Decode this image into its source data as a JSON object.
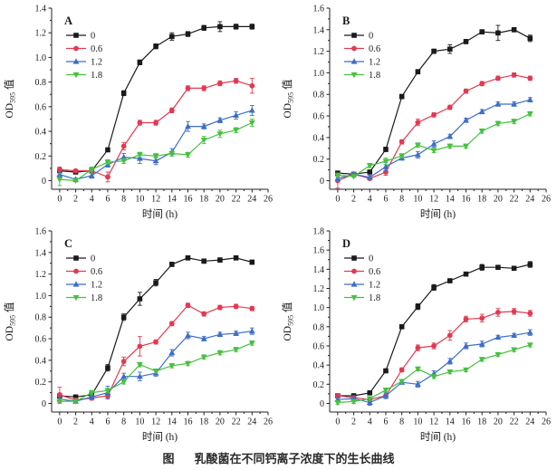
{
  "figure": {
    "caption_label": "图",
    "caption_title": "乳酸菌在不同钙离子浓度下的生长曲线"
  },
  "colors": {
    "axis": "#222222",
    "series_black": "#1a1a1a",
    "series_red": "#e23a52",
    "series_blue": "#3e6ec8",
    "series_green": "#45c13f"
  },
  "chart_data": [
    {
      "type": "line",
      "panel": "A",
      "xlabel": "时间 (h)",
      "ylabel": {
        "pre": "OD",
        "sub": "595",
        "post": " 值"
      },
      "xlim": [
        0,
        26
      ],
      "ylim": [
        0,
        1.4
      ],
      "xtick_step": 2,
      "ytick_step": 0.2,
      "grid": false,
      "legend_position": "upper-left",
      "x": [
        0,
        2,
        4,
        6,
        8,
        10,
        12,
        14,
        16,
        18,
        20,
        22,
        24
      ],
      "series": [
        {
          "name": "0",
          "marker": "square",
          "color": "#1a1a1a",
          "values": [
            0.08,
            0.07,
            0.08,
            0.25,
            0.71,
            0.96,
            1.09,
            1.17,
            1.19,
            1.24,
            1.25,
            1.25,
            1.25
          ],
          "err": [
            0.01,
            0.01,
            0.01,
            0.01,
            0.02,
            0.02,
            0.02,
            0.03,
            0.02,
            0.02,
            0.04,
            0.02,
            0.02
          ]
        },
        {
          "name": "0.6",
          "marker": "circle",
          "color": "#e23a52",
          "values": [
            0.09,
            0.08,
            0.08,
            0.03,
            0.28,
            0.47,
            0.47,
            0.57,
            0.75,
            0.75,
            0.79,
            0.81,
            0.77
          ],
          "err": [
            0.02,
            0.01,
            0.01,
            0.04,
            0.03,
            0.02,
            0.02,
            0.02,
            0.02,
            0.02,
            0.02,
            0.02,
            0.06
          ]
        },
        {
          "name": "1.2",
          "marker": "triangle-up",
          "color": "#3e6ec8",
          "values": [
            0.05,
            0.01,
            0.04,
            0.13,
            0.19,
            0.18,
            0.16,
            0.23,
            0.44,
            0.44,
            0.49,
            0.53,
            0.57
          ],
          "err": [
            0.02,
            0.01,
            0.02,
            0.02,
            0.03,
            0.04,
            0.03,
            0.03,
            0.04,
            0.02,
            0.02,
            0.03,
            0.04
          ]
        },
        {
          "name": "1.8",
          "marker": "triangle-down",
          "color": "#45c13f",
          "values": [
            0.01,
            0.0,
            0.09,
            0.15,
            0.16,
            0.21,
            0.2,
            0.22,
            0.21,
            0.33,
            0.38,
            0.41,
            0.47
          ],
          "err": [
            0.05,
            0.01,
            0.02,
            0.02,
            0.02,
            0.02,
            0.02,
            0.02,
            0.02,
            0.03,
            0.03,
            0.02,
            0.03
          ]
        }
      ]
    },
    {
      "type": "line",
      "panel": "B",
      "xlabel": "时间 (h)",
      "ylabel": {
        "pre": "OD",
        "sub": "595",
        "post": " 值"
      },
      "xlim": [
        0,
        26
      ],
      "ylim": [
        0,
        1.6
      ],
      "xtick_step": 2,
      "ytick_step": 0.2,
      "grid": false,
      "legend_position": "upper-left",
      "x": [
        0,
        2,
        4,
        6,
        8,
        10,
        12,
        14,
        16,
        18,
        20,
        22,
        24
      ],
      "series": [
        {
          "name": "0",
          "marker": "square",
          "color": "#1a1a1a",
          "values": [
            0.07,
            0.06,
            0.08,
            0.29,
            0.78,
            1.01,
            1.2,
            1.22,
            1.29,
            1.38,
            1.37,
            1.4,
            1.32
          ],
          "err": [
            0.01,
            0.01,
            0.01,
            0.02,
            0.02,
            0.02,
            0.02,
            0.04,
            0.02,
            0.02,
            0.07,
            0.02,
            0.03
          ]
        },
        {
          "name": "0.6",
          "marker": "circle",
          "color": "#e23a52",
          "values": [
            0.0,
            0.06,
            0.02,
            0.08,
            0.36,
            0.54,
            0.61,
            0.68,
            0.83,
            0.9,
            0.95,
            0.98,
            0.95
          ],
          "err": [
            0.07,
            0.01,
            0.01,
            0.03,
            0.02,
            0.03,
            0.02,
            0.02,
            0.02,
            0.02,
            0.02,
            0.02,
            0.02
          ]
        },
        {
          "name": "1.2",
          "marker": "triangle-up",
          "color": "#3e6ec8",
          "values": [
            0.02,
            0.06,
            0.03,
            0.13,
            0.21,
            0.24,
            0.34,
            0.41,
            0.56,
            0.64,
            0.71,
            0.71,
            0.75
          ],
          "err": [
            0.02,
            0.02,
            0.02,
            0.04,
            0.02,
            0.03,
            0.03,
            0.02,
            0.02,
            0.02,
            0.02,
            0.02,
            0.02
          ]
        },
        {
          "name": "1.8",
          "marker": "triangle-down",
          "color": "#45c13f",
          "values": [
            0.05,
            0.04,
            0.14,
            0.18,
            0.23,
            0.33,
            0.28,
            0.32,
            0.32,
            0.46,
            0.53,
            0.55,
            0.62
          ],
          "err": [
            0.02,
            0.01,
            0.02,
            0.03,
            0.02,
            0.02,
            0.02,
            0.02,
            0.02,
            0.02,
            0.02,
            0.02,
            0.02
          ]
        }
      ]
    },
    {
      "type": "line",
      "panel": "C",
      "xlabel": "时间 (h)",
      "ylabel": {
        "pre": "OD",
        "sub": "595",
        "post": " 值"
      },
      "xlim": [
        0,
        26
      ],
      "ylim": [
        0,
        1.6
      ],
      "xtick_step": 2,
      "ytick_step": 0.2,
      "grid": false,
      "legend_position": "upper-left",
      "x": [
        0,
        2,
        4,
        6,
        8,
        10,
        12,
        14,
        16,
        18,
        20,
        22,
        24
      ],
      "series": [
        {
          "name": "0",
          "marker": "square",
          "color": "#1a1a1a",
          "values": [
            0.07,
            0.06,
            0.08,
            0.33,
            0.8,
            0.97,
            1.12,
            1.29,
            1.35,
            1.32,
            1.33,
            1.35,
            1.31
          ],
          "err": [
            0.02,
            0.01,
            0.01,
            0.03,
            0.03,
            0.06,
            0.03,
            0.02,
            0.02,
            0.02,
            0.02,
            0.02,
            0.02
          ]
        },
        {
          "name": "0.6",
          "marker": "circle",
          "color": "#e23a52",
          "values": [
            0.08,
            0.03,
            0.05,
            0.07,
            0.39,
            0.53,
            0.57,
            0.74,
            0.91,
            0.83,
            0.89,
            0.9,
            0.88
          ],
          "err": [
            0.07,
            0.02,
            0.02,
            0.02,
            0.04,
            0.09,
            0.02,
            0.02,
            0.02,
            0.02,
            0.02,
            0.02,
            0.02
          ]
        },
        {
          "name": "1.2",
          "marker": "triangle-up",
          "color": "#3e6ec8",
          "values": [
            0.04,
            0.02,
            0.06,
            0.1,
            0.25,
            0.25,
            0.28,
            0.47,
            0.63,
            0.6,
            0.64,
            0.65,
            0.67
          ],
          "err": [
            0.02,
            0.01,
            0.02,
            0.06,
            0.03,
            0.04,
            0.03,
            0.03,
            0.03,
            0.02,
            0.02,
            0.02,
            0.03
          ]
        },
        {
          "name": "1.8",
          "marker": "triangle-down",
          "color": "#45c13f",
          "values": [
            0.02,
            0.02,
            0.1,
            0.12,
            0.2,
            0.36,
            0.3,
            0.35,
            0.37,
            0.43,
            0.47,
            0.5,
            0.56
          ],
          "err": [
            0.02,
            0.01,
            0.02,
            0.02,
            0.02,
            0.02,
            0.02,
            0.02,
            0.02,
            0.02,
            0.02,
            0.02,
            0.02
          ]
        }
      ]
    },
    {
      "type": "line",
      "panel": "D",
      "xlabel": "时间 (h)",
      "ylabel": {
        "pre": "OD",
        "sub": "595",
        "post": " 值"
      },
      "xlim": [
        0,
        26
      ],
      "ylim": [
        0,
        1.8
      ],
      "xtick_step": 2,
      "ytick_step": 0.2,
      "grid": false,
      "legend_position": "upper-left",
      "x": [
        0,
        2,
        4,
        6,
        8,
        10,
        12,
        14,
        16,
        18,
        20,
        22,
        24
      ],
      "series": [
        {
          "name": "0",
          "marker": "square",
          "color": "#1a1a1a",
          "values": [
            0.08,
            0.08,
            0.11,
            0.34,
            0.8,
            1.01,
            1.21,
            1.28,
            1.35,
            1.42,
            1.42,
            1.41,
            1.45
          ],
          "err": [
            0.01,
            0.01,
            0.02,
            0.02,
            0.02,
            0.03,
            0.03,
            0.02,
            0.02,
            0.03,
            0.02,
            0.02,
            0.03
          ]
        },
        {
          "name": "0.6",
          "marker": "circle",
          "color": "#e23a52",
          "values": [
            0.08,
            0.06,
            0.04,
            0.08,
            0.35,
            0.58,
            0.6,
            0.71,
            0.88,
            0.89,
            0.95,
            0.96,
            0.94
          ],
          "err": [
            0.02,
            0.01,
            0.01,
            0.02,
            0.02,
            0.03,
            0.03,
            0.05,
            0.03,
            0.04,
            0.04,
            0.03,
            0.03
          ]
        },
        {
          "name": "1.2",
          "marker": "triangle-up",
          "color": "#3e6ec8",
          "values": [
            0.04,
            0.05,
            0.01,
            0.08,
            0.22,
            0.2,
            0.31,
            0.44,
            0.6,
            0.62,
            0.69,
            0.71,
            0.74
          ],
          "err": [
            0.02,
            0.03,
            0.03,
            0.03,
            0.02,
            0.03,
            0.03,
            0.03,
            0.03,
            0.03,
            0.02,
            0.02,
            0.03
          ]
        },
        {
          "name": "1.8",
          "marker": "triangle-down",
          "color": "#45c13f",
          "values": [
            0.01,
            0.02,
            0.05,
            0.14,
            0.23,
            0.36,
            0.28,
            0.33,
            0.35,
            0.46,
            0.51,
            0.56,
            0.61
          ],
          "err": [
            0.02,
            0.02,
            0.02,
            0.02,
            0.02,
            0.02,
            0.02,
            0.02,
            0.02,
            0.02,
            0.02,
            0.02,
            0.02
          ]
        }
      ]
    }
  ]
}
